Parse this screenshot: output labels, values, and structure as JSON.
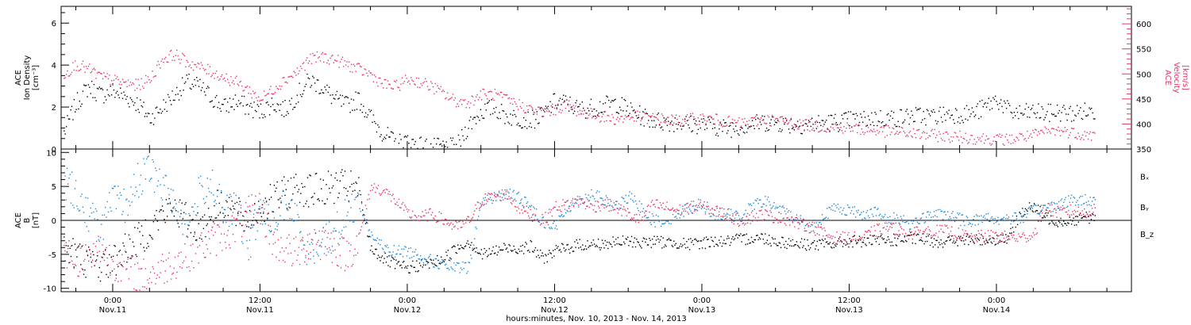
{
  "chart_data": [
    {
      "type": "scatter",
      "panel": "top",
      "ylabel_left": [
        "ACE",
        "Ion Density",
        "[cm⁻³]"
      ],
      "ylabel_right": [
        "ACE",
        "Velocity",
        "[km/s]"
      ],
      "yticks_left": [
        "0",
        "2",
        "4",
        "6"
      ],
      "yticks_right": [
        "350",
        "400",
        "450",
        "500",
        "550",
        "600"
      ],
      "ylim_left": [
        0,
        6.8
      ],
      "ylim_right": [
        350,
        635
      ],
      "right_axis_color": "#e8355f",
      "series": [
        {
          "name": "Ion Density",
          "axis": "left",
          "color": "#000000",
          "x": [
            -4,
            -3,
            -2,
            -1,
            0,
            1,
            2,
            3,
            4,
            5,
            6,
            7,
            8,
            9,
            10,
            11,
            12,
            13,
            14,
            15,
            16,
            17,
            18,
            19,
            20,
            21,
            22,
            23,
            24,
            25,
            26,
            27,
            28,
            29,
            30,
            31,
            32,
            33,
            34,
            35,
            36,
            37,
            38,
            39,
            40,
            41,
            42,
            43,
            44,
            45,
            46,
            47,
            48,
            49,
            50,
            51,
            52,
            53,
            54,
            55,
            56,
            57,
            58,
            59,
            60,
            61,
            62,
            63,
            64,
            65,
            66,
            67,
            68,
            69,
            70,
            71,
            72,
            73,
            74,
            75,
            76,
            77,
            78,
            79,
            80
          ],
          "values": [
            0.8,
            2.2,
            3.0,
            2.6,
            2.8,
            2.5,
            2.2,
            1.5,
            2.0,
            2.6,
            3.2,
            3.0,
            2.5,
            2.0,
            2.3,
            2.0,
            1.8,
            2.2,
            1.9,
            2.6,
            3.3,
            3.0,
            2.4,
            2.1,
            2.4,
            1.5,
            0.8,
            0.3,
            0.4,
            0.2,
            0.1,
            0.1,
            0.1,
            1.2,
            1.8,
            2.0,
            1.6,
            1.5,
            1.4,
            1.6,
            2.3,
            2.2,
            1.9,
            2.0,
            2.1,
            2.2,
            1.9,
            1.6,
            1.4,
            1.3,
            1.3,
            1.2,
            1.2,
            1.1,
            1.0,
            1.1,
            1.2,
            1.3,
            1.3,
            1.2,
            1.2,
            1.2,
            1.3,
            1.3,
            1.4,
            1.4,
            1.5,
            1.5,
            1.5,
            1.6,
            1.6,
            1.6,
            1.7,
            1.7,
            1.7,
            2.0,
            2.4,
            1.8,
            1.7,
            1.8,
            1.7,
            1.8,
            1.7,
            1.8,
            1.8
          ]
        },
        {
          "name": "Velocity",
          "axis": "right",
          "color": "#e8355f",
          "x": [
            -4,
            -3,
            -2,
            -1,
            0,
            1,
            2,
            3,
            4,
            5,
            6,
            7,
            8,
            9,
            10,
            11,
            12,
            13,
            14,
            15,
            16,
            17,
            18,
            19,
            20,
            21,
            22,
            23,
            24,
            25,
            26,
            27,
            28,
            29,
            30,
            31,
            32,
            33,
            34,
            35,
            36,
            37,
            38,
            39,
            40,
            41,
            42,
            43,
            44,
            45,
            46,
            47,
            48,
            49,
            50,
            51,
            52,
            53,
            54,
            55,
            56,
            57,
            58,
            59,
            60,
            61,
            62,
            63,
            64,
            65,
            66,
            67,
            68,
            69,
            70,
            71,
            72,
            73,
            74,
            75,
            76,
            77,
            78,
            79,
            80
          ],
          "values": [
            500,
            520,
            510,
            495,
            488,
            482,
            478,
            490,
            530,
            540,
            525,
            515,
            505,
            495,
            485,
            470,
            450,
            470,
            490,
            505,
            530,
            535,
            530,
            520,
            510,
            500,
            480,
            475,
            490,
            485,
            475,
            460,
            445,
            445,
            460,
            460,
            450,
            440,
            430,
            425,
            430,
            440,
            425,
            420,
            415,
            410,
            415,
            415,
            412,
            410,
            408,
            410,
            412,
            410,
            405,
            402,
            405,
            410,
            408,
            405,
            400,
            398,
            395,
            395,
            393,
            390,
            388,
            386,
            384,
            382,
            380,
            378,
            376,
            375,
            373,
            372,
            370,
            370,
            375,
            378,
            385,
            388,
            385,
            380,
            378
          ]
        }
      ]
    },
    {
      "type": "scatter",
      "panel": "bottom",
      "ylabel_left": [
        "ACE",
        "B",
        "[nT]"
      ],
      "yticks_left": [
        "-10",
        "-5",
        "0",
        "5",
        "10"
      ],
      "ylim": [
        -10.5,
        10.5
      ],
      "zero_line": true,
      "legend_position": "right",
      "legend": [
        "Bₓ",
        "Bᵧ",
        "B_z"
      ],
      "series": [
        {
          "name": "Bₓ",
          "color": "#000000",
          "x": [
            -4,
            -3,
            -2,
            -1,
            0,
            1,
            2,
            3,
            4,
            5,
            6,
            7,
            8,
            9,
            10,
            11,
            12,
            13,
            14,
            15,
            16,
            17,
            18,
            19,
            20,
            21,
            22,
            23,
            24,
            25,
            26,
            27,
            28,
            29,
            30,
            31,
            32,
            33,
            34,
            35,
            36,
            37,
            38,
            39,
            40,
            41,
            42,
            43,
            44,
            45,
            46,
            47,
            48,
            49,
            50,
            51,
            52,
            53,
            54,
            55,
            56,
            57,
            58,
            59,
            60,
            61,
            62,
            63,
            64,
            65,
            66,
            67,
            68,
            69,
            70,
            71,
            72,
            73,
            74,
            75,
            76,
            77,
            78,
            79,
            80
          ],
          "values": [
            -4,
            -5,
            -6,
            -6.5,
            -6,
            -4,
            -3,
            -1,
            1,
            2,
            0,
            -1,
            1,
            3,
            1,
            0,
            2,
            3,
            4,
            5,
            4.5,
            4.5,
            5,
            5,
            4.5,
            -4,
            -5.5,
            -6.5,
            -7,
            -6.5,
            -6.2,
            -5.5,
            -4,
            -3,
            -5,
            -4.5,
            -4,
            -4,
            -3.8,
            -5.5,
            -4.5,
            -4,
            -3.5,
            -3.5,
            -3.4,
            -3.2,
            -3,
            -3.2,
            -3,
            -3.2,
            -3.2,
            -3.5,
            -3.2,
            -3,
            -3,
            -2.8,
            -2.5,
            -2.5,
            -3,
            -3.2,
            -3.4,
            -3.5,
            -3.5,
            -3.3,
            -3,
            -3,
            -3,
            -2.9,
            -2.8,
            -2.6,
            -2.7,
            -3,
            -3,
            -2.9,
            -2.8,
            -2.8,
            -2.7,
            -2.5,
            1.5,
            2,
            0.5,
            0,
            0,
            0.5,
            0.5
          ]
        },
        {
          "name": "Bᵧ",
          "color": "#1f88d8",
          "x": [
            -4,
            -3,
            -2,
            -1,
            0,
            1,
            2,
            3,
            4,
            5,
            6,
            7,
            8,
            9,
            10,
            11,
            12,
            13,
            14,
            15,
            16,
            17,
            18,
            19,
            20,
            21,
            22,
            23,
            24,
            25,
            26,
            27,
            28,
            29,
            30,
            31,
            32,
            33,
            34,
            35,
            36,
            37,
            38,
            39,
            40,
            41,
            42,
            43,
            44,
            45,
            46,
            47,
            48,
            49,
            50,
            51,
            52,
            53,
            54,
            55,
            56,
            57,
            58,
            59,
            60,
            61,
            62,
            63,
            64,
            65,
            66,
            67,
            68,
            69,
            70,
            71,
            72,
            73,
            74,
            75,
            76,
            77,
            78,
            79,
            80
          ],
          "values": [
            6,
            4,
            1,
            -1,
            3,
            2,
            6,
            7.5,
            5,
            3,
            -1,
            4,
            6,
            1,
            2,
            -4,
            2,
            -1,
            3,
            0,
            -5,
            -3,
            -2,
            1,
            3,
            -2,
            -4,
            -4.5,
            -4.5,
            -5,
            -6,
            -6.5,
            -7,
            -6.8,
            3,
            3.5,
            4,
            3.5,
            2,
            0,
            -1,
            2,
            3,
            4,
            3,
            2,
            3.5,
            2,
            0,
            0,
            1,
            2,
            2.5,
            1,
            1,
            0.5,
            2,
            3,
            2,
            1,
            0,
            -1,
            1,
            2,
            1.5,
            1,
            1.5,
            0,
            0.5,
            -0.5,
            0.5,
            0.8,
            1,
            0.2,
            0,
            0.5,
            0.2,
            0.4,
            0.5,
            1.5,
            2,
            2.5,
            3,
            3,
            3.2
          ]
        },
        {
          "name": "B_z",
          "color": "#e8355f",
          "x": [
            -4,
            -3,
            -2,
            -1,
            0,
            1,
            2,
            3,
            4,
            5,
            6,
            7,
            8,
            9,
            10,
            11,
            12,
            13,
            14,
            15,
            16,
            17,
            18,
            19,
            20,
            21,
            22,
            23,
            24,
            25,
            26,
            27,
            28,
            29,
            30,
            31,
            32,
            33,
            34,
            35,
            36,
            37,
            38,
            39,
            40,
            41,
            42,
            43,
            44,
            45,
            46,
            47,
            48,
            49,
            50,
            51,
            52,
            53,
            54,
            55,
            56,
            57,
            58,
            59,
            60,
            61,
            62,
            63,
            64,
            65,
            66,
            67,
            68,
            69,
            70,
            71,
            72,
            73,
            74,
            75,
            76,
            77,
            78,
            79,
            80
          ],
          "values": [
            -4,
            -6,
            -5,
            -4,
            -6,
            -7,
            -8,
            -8,
            -7,
            -6,
            -5,
            -4,
            -3,
            -2,
            -1,
            1,
            2,
            -3,
            -4,
            -5,
            -3,
            -2,
            -4,
            -5,
            -3,
            5,
            4.5,
            3,
            1,
            0.5,
            1,
            0,
            -1,
            0,
            3,
            3.5,
            4,
            2,
            1,
            0,
            2,
            2.5,
            3,
            2,
            2.5,
            2,
            1,
            0,
            2.5,
            2,
            1.5,
            2,
            2,
            1.5,
            1,
            0,
            0.5,
            1,
            0.5,
            0.2,
            -0.5,
            -1,
            -2,
            -2.5,
            -2.5,
            -2.6,
            -1.5,
            -1,
            -1.3,
            -2,
            -1.5,
            -1.5,
            -1.5,
            -2,
            -2.5,
            -2.2,
            -2.3,
            -2.4,
            -2.5,
            -2,
            2,
            1.2,
            1.5,
            1.2,
            1.6
          ]
        }
      ]
    }
  ],
  "time_axis": {
    "tick_hours": [
      0,
      12,
      24,
      36,
      48,
      60,
      72
    ],
    "tick_labels": [
      [
        "0:00",
        "Nov.11"
      ],
      [
        "12:00",
        "Nov.11"
      ],
      [
        "0:00",
        "Nov.12"
      ],
      [
        "12:00",
        "Nov.12"
      ],
      [
        "0:00",
        "Nov.13"
      ],
      [
        "12:00",
        "Nov.13"
      ],
      [
        "0:00",
        "Nov.14"
      ]
    ],
    "xlim": [
      -4.2,
      83
    ],
    "xlabel": "hours:minutes, Nov. 10, 2013 - Nov. 14, 2013"
  }
}
